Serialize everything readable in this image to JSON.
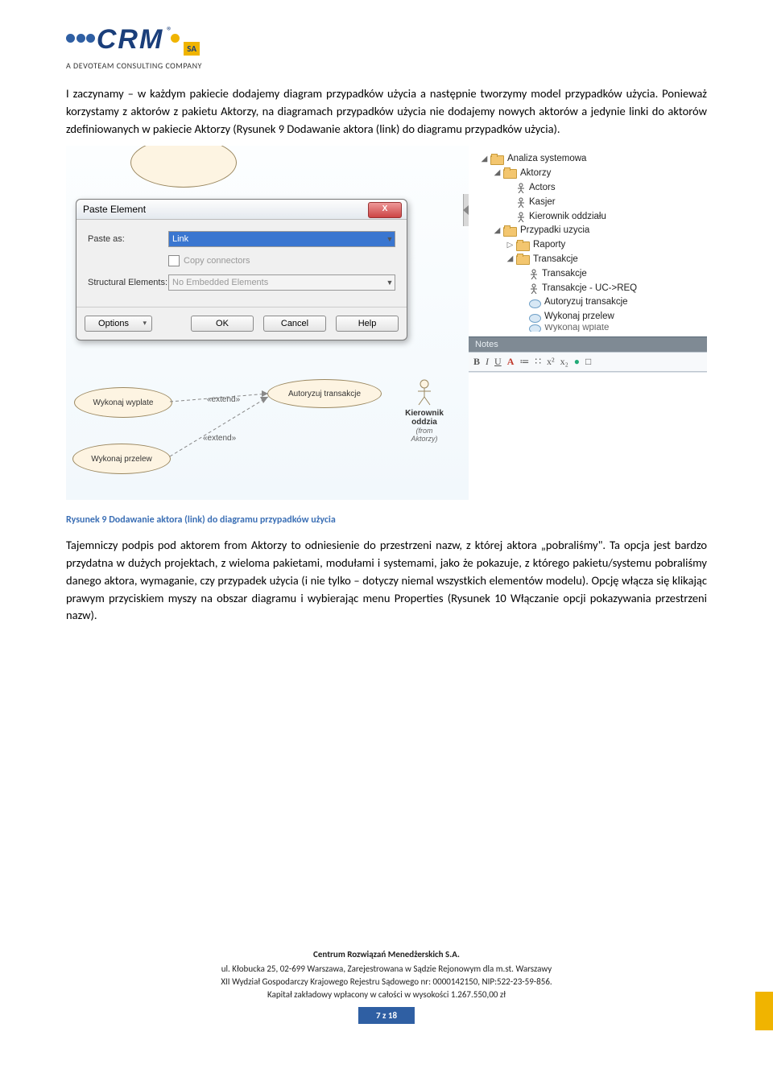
{
  "logo": {
    "brand": "CRM",
    "sa": "SA",
    "reg": "®",
    "tagline": "A DEVOTEAM CONSULTING COMPANY",
    "dots": [
      "#2f5fa3",
      "#2f5fa3",
      "#2f5fa3",
      "#f0b400"
    ]
  },
  "para1": "I zaczynamy – w każdym pakiecie dodajemy diagram przypadków użycia a następnie tworzymy model przypadków użycia. Ponieważ korzystamy z aktorów z pakietu Aktorzy, na diagramach przypadków użycia nie dodajemy nowych aktorów a jedynie linki do aktorów zdefiniowanych w pakiecie Aktorzy (Rysunek 9 Dodawanie aktora (link) do diagramu przypadków użycia).",
  "dialog": {
    "title": "Paste Element",
    "close": "X",
    "paste_as_lbl": "Paste as:",
    "paste_as_val": "Link",
    "copy_conn": "Copy connectors",
    "struct_lbl": "Structural Elements:",
    "struct_val": "No Embedded Elements",
    "options": "Options",
    "ok": "OK",
    "cancel": "Cancel",
    "help": "Help"
  },
  "diagram": {
    "uc1": "Wykonaj wyplate",
    "uc2": "Autoryzuj transakcje",
    "uc3": "Wykonaj przelew",
    "ext": "«extend»",
    "actor": "Kierownik oddzia",
    "from": "(from",
    "pkg": "Aktorzy)"
  },
  "tree": [
    {
      "indent": 0,
      "tog": "◢",
      "ico": "fld",
      "label": "Analiza systemowa"
    },
    {
      "indent": 1,
      "tog": "◢",
      "ico": "fld",
      "label": "Aktorzy"
    },
    {
      "indent": 2,
      "tog": "",
      "ico": "act",
      "label": "Actors"
    },
    {
      "indent": 2,
      "tog": "",
      "ico": "act",
      "label": "Kasjer"
    },
    {
      "indent": 2,
      "tog": "",
      "ico": "act",
      "label": "Kierownik oddziału"
    },
    {
      "indent": 1,
      "tog": "◢",
      "ico": "fld",
      "label": "Przypadki uzycia"
    },
    {
      "indent": 2,
      "tog": "▷",
      "ico": "fld",
      "label": "Raporty"
    },
    {
      "indent": 2,
      "tog": "◢",
      "ico": "fld",
      "label": "Transakcje"
    },
    {
      "indent": 3,
      "tog": "",
      "ico": "act",
      "label": "Transakcje"
    },
    {
      "indent": 3,
      "tog": "",
      "ico": "act",
      "label": "Transakcje - UC->REQ"
    },
    {
      "indent": 3,
      "tog": "",
      "ico": "uc-i",
      "label": "Autoryzuj transakcje"
    },
    {
      "indent": 3,
      "tog": "",
      "ico": "uc-i",
      "label": "Wykonaj przelew"
    },
    {
      "indent": 3,
      "tog": "",
      "ico": "uc-i",
      "label": "Wykonaj wplate",
      "cut": true
    }
  ],
  "notes": {
    "header": "Notes",
    "tb": [
      "B",
      "I",
      "U",
      "A",
      "≔",
      "∷",
      "x²",
      "x₂",
      "●",
      "□"
    ]
  },
  "caption": "Rysunek 9 Dodawanie aktora (link) do diagramu przypadków użycia",
  "para2": "Tajemniczy podpis pod aktorem from Aktorzy  to odniesienie do przestrzeni nazw, z której aktora „pobraliśmy\". Ta opcja jest bardzo przydatna w dużych projektach, z wieloma pakietami, modułami i systemami, jako że pokazuje, z którego pakietu/systemu pobraliśmy danego aktora, wymaganie, czy przypadek użycia (i nie tylko – dotyczy niemal wszystkich elementów modelu). Opcję włącza się klikając prawym przyciskiem myszy na obszar diagramu i wybierając menu Properties (Rysunek 10 Włączanie opcji pokazywania przestrzeni nazw).",
  "footer": {
    "title": "Centrum Rozwiązań Menedżerskich S.A.",
    "l1": "ul. Kłobucka 25, 02-699 Warszawa, Zarejestrowana w Sądzie Rejonowym dla m.st. Warszawy",
    "l2": "XII Wydział Gospodarczy Krajowego Rejestru Sądowego nr: 0000142150, NIP:522-23-59-856.",
    "l3": "Kapitał zakładowy wpłacony w całości w wysokości 1.267.550,00 zł"
  },
  "page": "7 z 18"
}
